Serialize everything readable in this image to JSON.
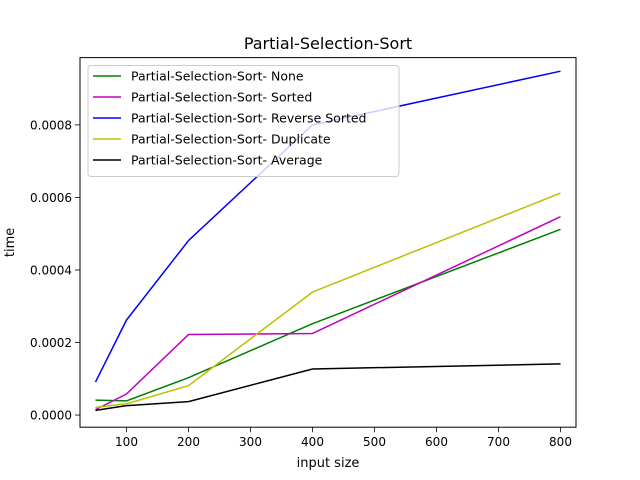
{
  "chart_data": {
    "type": "line",
    "title": "Partial-Selection-Sort",
    "xlabel": "input size",
    "ylabel": "time",
    "xlim": [
      25,
      825
    ],
    "ylim": [
      -3.35e-05,
      0.0009855
    ],
    "xticks": [
      100,
      200,
      300,
      400,
      500,
      600,
      700,
      800
    ],
    "xtick_labels": [
      "100",
      "200",
      "300",
      "400",
      "500",
      "600",
      "700",
      "800"
    ],
    "yticks": [
      0,
      0.0002,
      0.0004,
      0.0006,
      0.0008
    ],
    "ytick_labels": [
      "0.0000",
      "0.0002",
      "0.0004",
      "0.0006",
      "0.0008"
    ],
    "x": [
      50,
      100,
      200,
      400,
      800
    ],
    "legend_position": "upper-left",
    "grid": false,
    "series": [
      {
        "name": "Partial-Selection-Sort- None",
        "color": "#008000",
        "values": [
          4.1e-05,
          3.9e-05,
          0.000103,
          0.000252,
          0.000512
        ]
      },
      {
        "name": "Partial-Selection-Sort- Sorted",
        "color": "#bf00bf",
        "values": [
          1.5e-05,
          5.8e-05,
          0.000222,
          0.000225,
          0.000547
        ]
      },
      {
        "name": "Partial-Selection-Sort- Reverse Sorted",
        "color": "#0000ff",
        "values": [
          9.1e-05,
          0.000262,
          0.000481,
          0.0008,
          0.000948
        ]
      },
      {
        "name": "Partial-Selection-Sort- Duplicate",
        "color": "#bfbf00",
        "values": [
          2.1e-05,
          3.1e-05,
          8.1e-05,
          0.000339,
          0.000612
        ]
      },
      {
        "name": "Partial-Selection-Sort- Average",
        "color": "#000000",
        "values": [
          1.3e-05,
          2.6e-05,
          3.7e-05,
          0.000127,
          0.000141
        ]
      }
    ]
  }
}
